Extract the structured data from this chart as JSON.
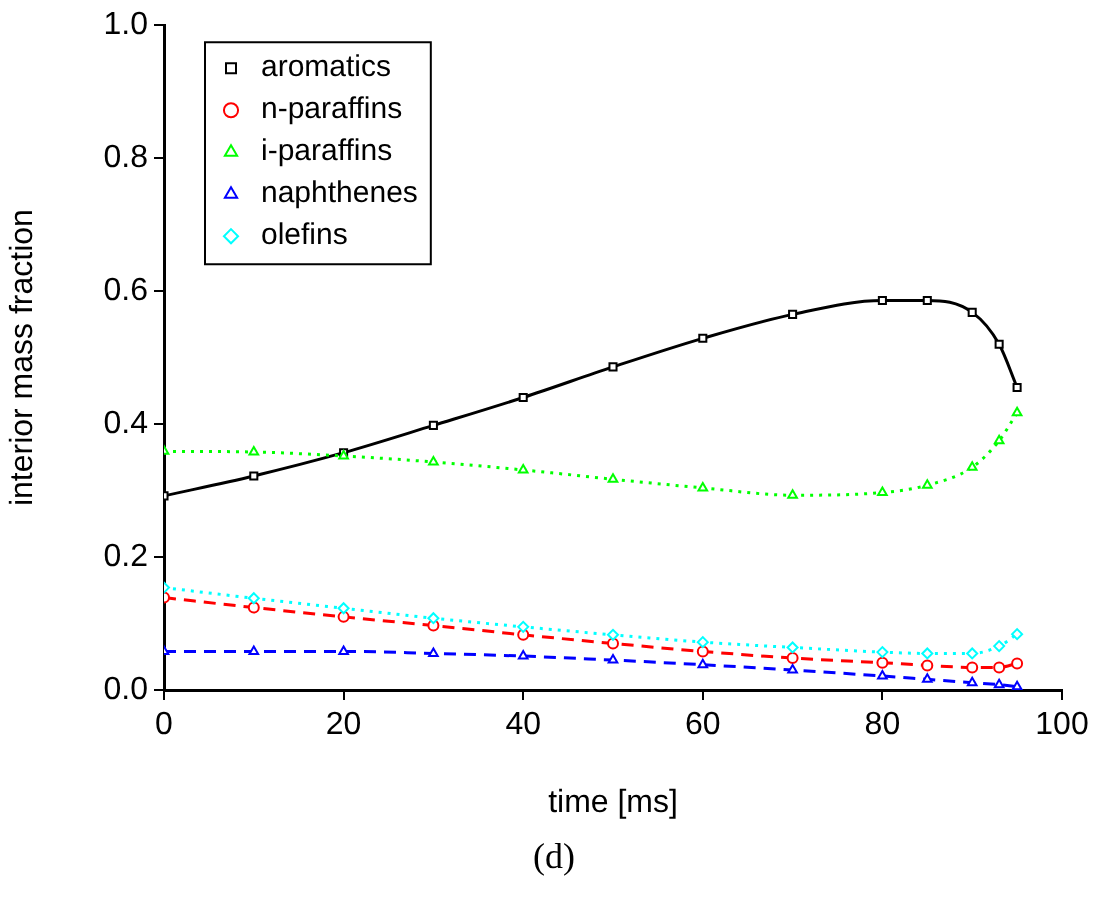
{
  "chart_data": {
    "type": "line",
    "xlabel": "time [ms]",
    "ylabel": "interior mass fraction",
    "annotations": [
      "(d)"
    ],
    "xlim": [
      0,
      100
    ],
    "xticks": [
      0,
      20,
      40,
      60,
      80,
      100
    ],
    "ylim": [
      0,
      1
    ],
    "yticks": [
      {
        "value": 0,
        "label": "0.0"
      },
      {
        "value": 0.2,
        "label": "0.2"
      },
      {
        "value": 0.4,
        "label": "0.4"
      },
      {
        "value": 0.6,
        "label": "0.6"
      },
      {
        "value": 0.8,
        "label": "0.8"
      },
      {
        "value": 1,
        "label": "1.0"
      }
    ],
    "grid": false,
    "legend": "top left",
    "x": [
      0,
      10,
      20,
      30,
      40,
      50,
      60,
      70,
      80,
      85,
      90,
      93,
      95
    ],
    "series": [
      {
        "name": "aromatics",
        "color": "#000000",
        "marker": "square",
        "line_style": "solid",
        "values": [
          0.292,
          0.322,
          0.357,
          0.398,
          0.44,
          0.486,
          0.529,
          0.565,
          0.586,
          0.586,
          0.568,
          0.52,
          0.455
        ]
      },
      {
        "name": "n-paraffins",
        "color": "#ff0000",
        "marker": "circle",
        "line_style": "dashed",
        "values": [
          0.139,
          0.124,
          0.11,
          0.097,
          0.083,
          0.07,
          0.058,
          0.048,
          0.041,
          0.037,
          0.034,
          0.034,
          0.04
        ]
      },
      {
        "name": "i-paraffins",
        "color": "#00ff00",
        "marker": "triangle",
        "line_style": "dotted",
        "values": [
          0.359,
          0.358,
          0.352,
          0.343,
          0.331,
          0.317,
          0.304,
          0.293,
          0.297,
          0.308,
          0.335,
          0.375,
          0.417
        ]
      },
      {
        "name": "naphthenes",
        "color": "#0000ff",
        "marker": "triangle",
        "line_style": "dashed",
        "values": [
          0.058,
          0.058,
          0.058,
          0.055,
          0.051,
          0.045,
          0.038,
          0.03,
          0.021,
          0.016,
          0.011,
          0.008,
          0.005
        ]
      },
      {
        "name": "olefins",
        "color": "#00ffff",
        "marker": "diamond",
        "line_style": "dotted",
        "values": [
          0.154,
          0.138,
          0.123,
          0.108,
          0.095,
          0.083,
          0.072,
          0.064,
          0.057,
          0.055,
          0.055,
          0.066,
          0.084
        ]
      }
    ]
  }
}
